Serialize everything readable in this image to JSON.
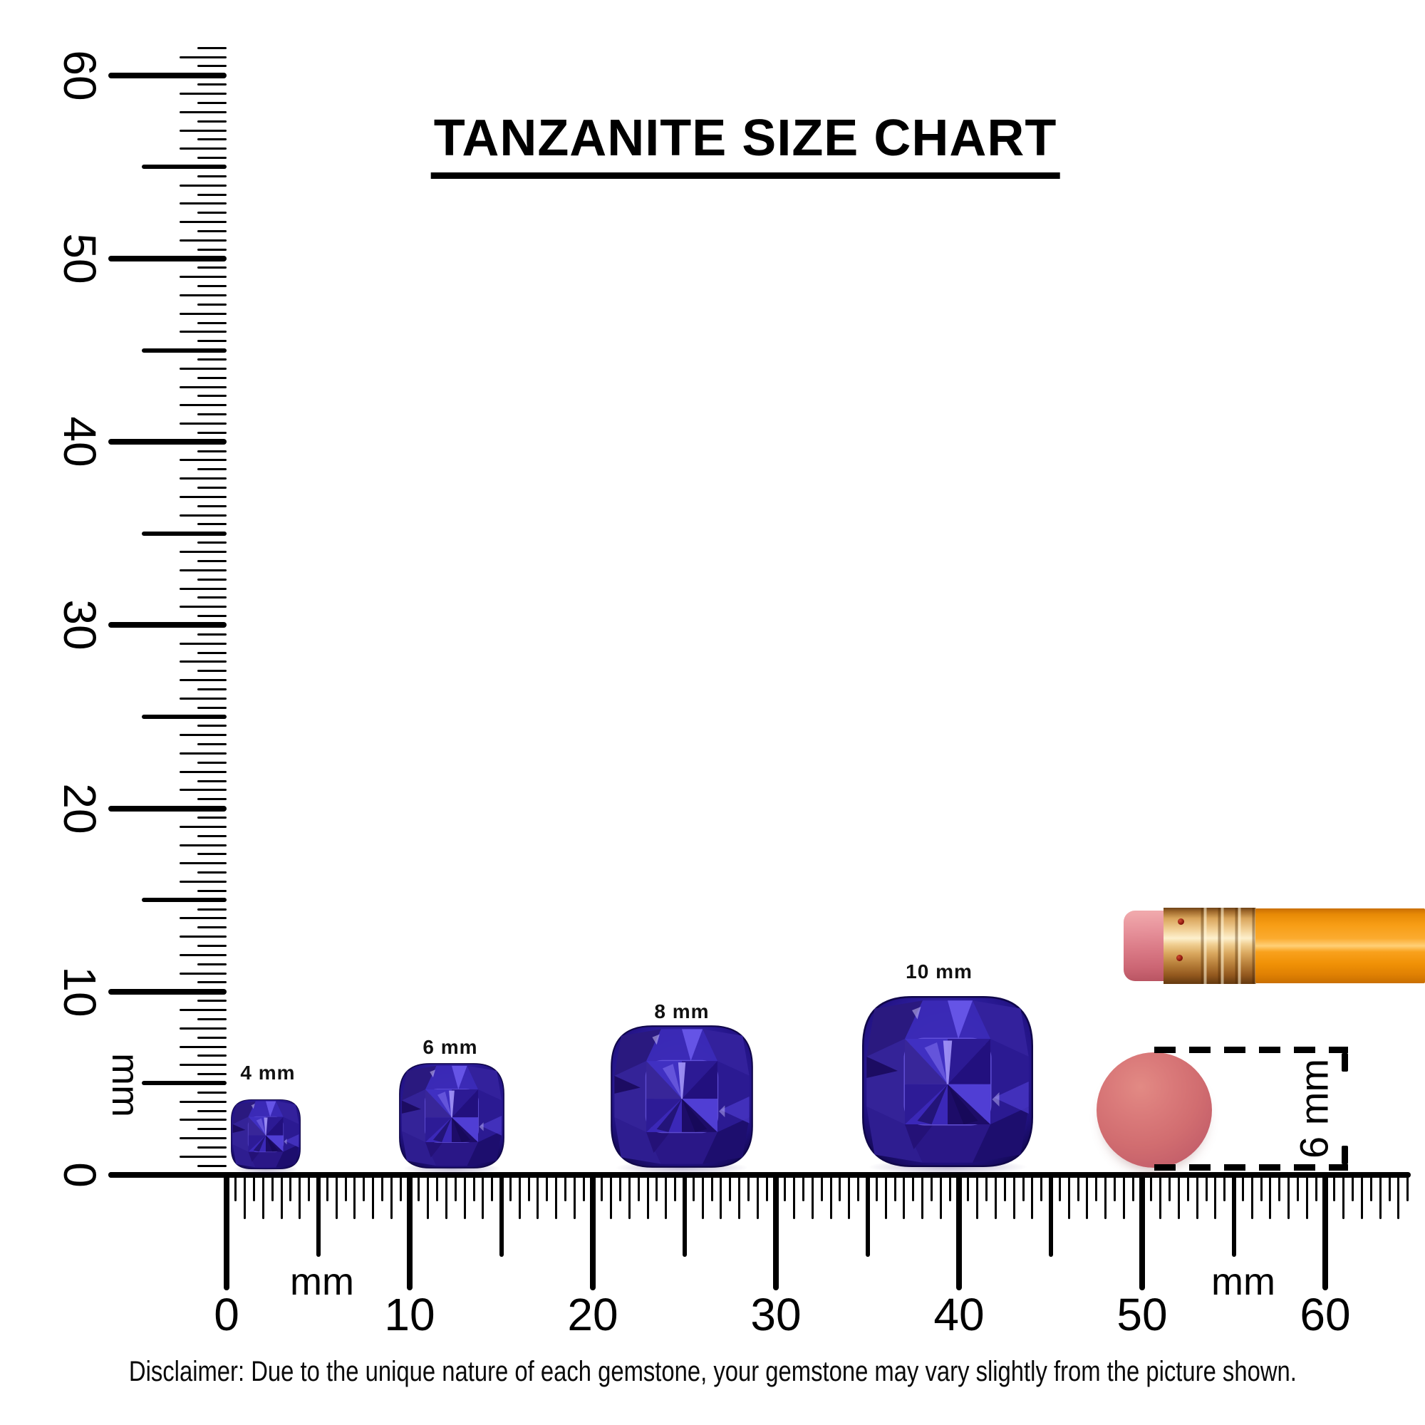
{
  "title": "TANZANITE SIZE CHART",
  "gems": [
    {
      "label": "4 mm",
      "size_mm": 4
    },
    {
      "label": "6 mm",
      "size_mm": 6
    },
    {
      "label": "8 mm",
      "size_mm": 8
    },
    {
      "label": "10 mm",
      "size_mm": 10
    }
  ],
  "vertical_ruler": {
    "unit": "mm",
    "tick_labels": [
      "0",
      "10",
      "20",
      "30",
      "40",
      "50",
      "60"
    ]
  },
  "horizontal_ruler": {
    "unit_left": "mm",
    "unit_right": "mm",
    "tick_labels": [
      "0",
      "10",
      "20",
      "30",
      "40",
      "50",
      "60"
    ]
  },
  "eraser_reference": {
    "dimension_label": "6 mm"
  },
  "disclaimer": "Disclaimer: Due to the unique nature of each gemstone, your gemstone may vary slightly from the picture shown.",
  "colors": {
    "ink": "#000000",
    "gem_primary": "#3a28b4",
    "gem_dark": "#150a58",
    "gem_light": "#8474f2",
    "pencil_body_orange": "#f79d15",
    "ferrule_gold": "#e9b96e",
    "eraser_pink": "#d87f8a",
    "eraser_disc": "#d16d70"
  }
}
